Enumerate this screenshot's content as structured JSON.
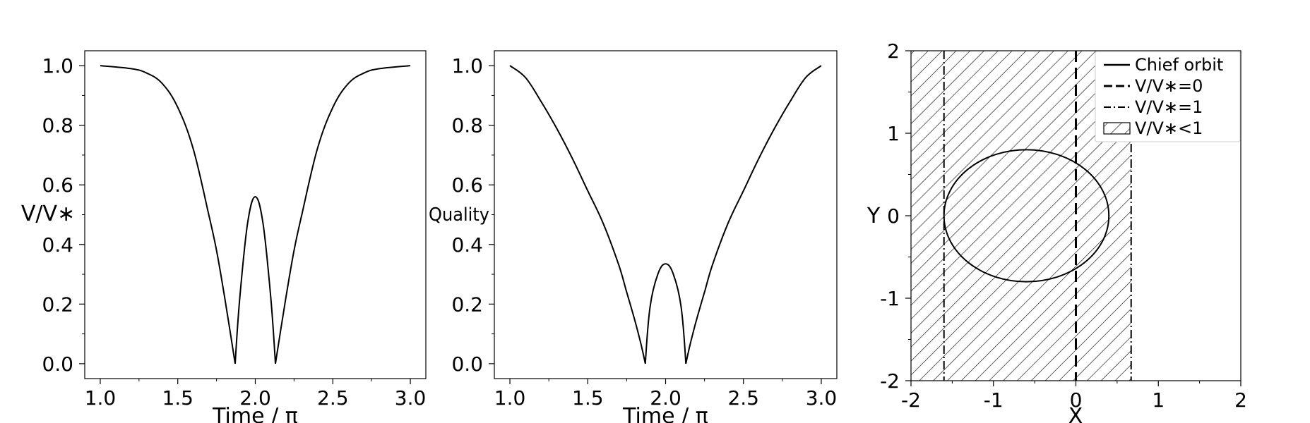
{
  "chart_data": [
    {
      "type": "line",
      "xlabel": "Time / π",
      "ylabel": "V/V∗",
      "xlim": [
        0.9,
        3.1
      ],
      "ylim": [
        -0.05,
        1.05
      ],
      "xticks": [
        "1.0",
        "1.5",
        "2.0",
        "2.5",
        "3.0"
      ],
      "yticks": [
        "0.0",
        "0.2",
        "0.4",
        "0.6",
        "0.8",
        "1.0"
      ],
      "series": [
        {
          "x": [
            1.0,
            1.2,
            1.3,
            1.4,
            1.5,
            1.6,
            1.7,
            1.75,
            1.8,
            1.84,
            1.87,
            1.9,
            1.95,
            2.0,
            2.05,
            2.1,
            2.13,
            2.16,
            2.2,
            2.25,
            2.3,
            2.4,
            2.5,
            2.6,
            2.7,
            2.8,
            3.0
          ],
          "y": [
            1.0,
            0.99,
            0.975,
            0.94,
            0.86,
            0.72,
            0.5,
            0.38,
            0.23,
            0.1,
            0.0,
            0.22,
            0.47,
            0.56,
            0.47,
            0.22,
            0.0,
            0.1,
            0.23,
            0.38,
            0.5,
            0.72,
            0.86,
            0.94,
            0.975,
            0.99,
            1.0
          ]
        }
      ],
      "grid": false
    },
    {
      "type": "line",
      "xlabel": "Time / π",
      "ylabel": "Quality",
      "xlim": [
        0.9,
        3.1
      ],
      "ylim": [
        -0.05,
        1.05
      ],
      "xticks": [
        "1.0",
        "1.5",
        "2.0",
        "2.5",
        "3.0"
      ],
      "yticks": [
        "0.0",
        "0.2",
        "0.4",
        "0.6",
        "0.8",
        "1.0"
      ],
      "series": [
        {
          "x": [
            1.0,
            1.1,
            1.2,
            1.3,
            1.4,
            1.5,
            1.6,
            1.7,
            1.75,
            1.8,
            1.84,
            1.87,
            1.9,
            1.95,
            2.0,
            2.05,
            2.1,
            2.13,
            2.16,
            2.2,
            2.25,
            2.3,
            2.4,
            2.5,
            2.6,
            2.7,
            2.8,
            2.9,
            3.0
          ],
          "y": [
            1.0,
            0.96,
            0.88,
            0.79,
            0.69,
            0.58,
            0.47,
            0.33,
            0.24,
            0.15,
            0.07,
            0.0,
            0.19,
            0.3,
            0.335,
            0.3,
            0.19,
            0.0,
            0.07,
            0.15,
            0.24,
            0.33,
            0.47,
            0.58,
            0.69,
            0.79,
            0.88,
            0.96,
            1.0
          ]
        }
      ],
      "grid": false
    },
    {
      "type": "line",
      "xlabel": "X",
      "ylabel": "Y",
      "xlim": [
        -2,
        2
      ],
      "ylim": [
        -2,
        2
      ],
      "xticks": [
        "-2",
        "-1",
        "0",
        "1",
        "2"
      ],
      "yticks": [
        "-2",
        "-1",
        "0",
        "1",
        "2"
      ],
      "legend_position": "top-right",
      "legend": [
        {
          "label": "Chief orbit",
          "style": "solid"
        },
        {
          "label": "V/V∗=0",
          "style": "dashed"
        },
        {
          "label": "V/V∗=1",
          "style": "dashdot"
        },
        {
          "label": "V/V∗<1",
          "style": "hatch"
        }
      ],
      "chief_orbit": {
        "center": [
          -0.6,
          0.0
        ],
        "rx": 1.0,
        "ry": 0.8
      },
      "v0_line_x": 0.0,
      "v1_lines_x": [
        -1.6,
        0.67
      ],
      "hatched_region_x": [
        -2.0,
        0.67
      ],
      "grid": false
    }
  ]
}
